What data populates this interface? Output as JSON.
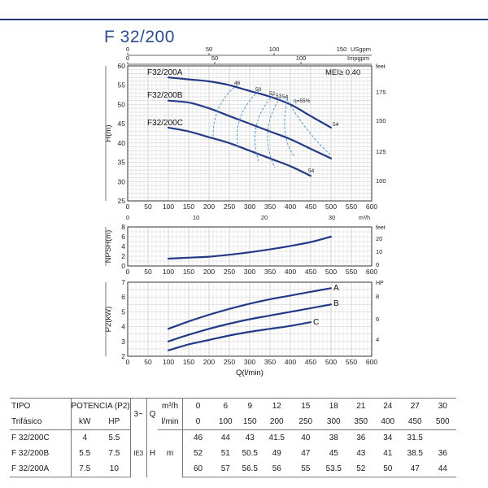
{
  "title": "F 32/200",
  "chart_data": [
    {
      "type": "line",
      "name": "head",
      "ylabel": "H(m)",
      "xlim": [
        0,
        600
      ],
      "ylim": [
        25,
        60
      ],
      "x_ticks": [
        "0",
        "50",
        "100",
        "150",
        "200",
        "250",
        "300",
        "350",
        "400",
        "450",
        "500",
        "550",
        "600"
      ],
      "y_ticks": [
        "25",
        "30",
        "35",
        "40",
        "45",
        "50",
        "55",
        "60"
      ],
      "top_axis_1": {
        "unit": "USgpm",
        "unit_prefix": "150",
        "ticks": [
          "0",
          "50",
          "100"
        ]
      },
      "top_axis_2": {
        "unit": "Impgpm",
        "ticks": [
          "0",
          "50",
          "100"
        ]
      },
      "right_unit": "feet",
      "right_ticks": [
        "100",
        "125",
        "150",
        "175"
      ],
      "annotation": "MEI≥ 0.40",
      "series": [
        {
          "name": "F32/200A",
          "x": [
            100,
            150,
            200,
            250,
            300,
            350,
            400,
            450,
            500
          ],
          "y": [
            57,
            56.5,
            56,
            55,
            53.5,
            52,
            50,
            47,
            44
          ]
        },
        {
          "name": "F32/200B",
          "x": [
            100,
            150,
            200,
            250,
            300,
            350,
            400,
            450,
            500
          ],
          "y": [
            51,
            50.5,
            49,
            47,
            45,
            43,
            41,
            38.5,
            36
          ]
        },
        {
          "name": "F32/200C",
          "x": [
            100,
            150,
            200,
            250,
            300,
            350,
            400,
            450
          ],
          "y": [
            44,
            43,
            41.5,
            40,
            38,
            36,
            34,
            31.5
          ]
        }
      ],
      "efficiency_labels": [
        "46",
        "50",
        "52",
        "53",
        "54",
        "η=55%",
        "54",
        "54"
      ]
    },
    {
      "type": "line",
      "name": "npsh",
      "ylabel": "NPSH(m)",
      "xlim": [
        0,
        600
      ],
      "ylim": [
        0,
        8
      ],
      "x_ticks": [
        "0",
        "50",
        "100",
        "150",
        "200",
        "250",
        "300",
        "350",
        "400",
        "450",
        "500",
        "550",
        "600"
      ],
      "y_ticks": [
        "0",
        "2",
        "4",
        "6",
        "8"
      ],
      "top_axis": {
        "unit": "m³/h",
        "ticks": [
          "0",
          "10",
          "20",
          "30"
        ]
      },
      "right_unit": "feet",
      "right_ticks": [
        "0",
        "10",
        "20"
      ],
      "series": [
        {
          "name": "",
          "x": [
            100,
            150,
            200,
            250,
            300,
            350,
            400,
            450,
            500
          ],
          "y": [
            1.5,
            1.7,
            1.9,
            2.3,
            2.8,
            3.4,
            4.1,
            4.9,
            6.0
          ]
        }
      ]
    },
    {
      "type": "line",
      "name": "power",
      "ylabel": "P2(kW)",
      "xlabel": "Q(l/min)",
      "xlim": [
        0,
        600
      ],
      "ylim": [
        2,
        7
      ],
      "x_ticks": [
        "0",
        "50",
        "100",
        "150",
        "200",
        "250",
        "300",
        "350",
        "400",
        "450",
        "500",
        "550",
        "600"
      ],
      "y_ticks": [
        "2",
        "3",
        "4",
        "5",
        "6",
        "7"
      ],
      "right_unit": "HP",
      "right_ticks": [
        "4",
        "6",
        "8"
      ],
      "series": [
        {
          "name": "A",
          "x": [
            100,
            150,
            200,
            250,
            300,
            350,
            400,
            450,
            500
          ],
          "y": [
            3.85,
            4.35,
            4.8,
            5.2,
            5.55,
            5.85,
            6.1,
            6.35,
            6.6
          ]
        },
        {
          "name": "B",
          "x": [
            100,
            150,
            200,
            250,
            300,
            350,
            400,
            450,
            500
          ],
          "y": [
            3.0,
            3.45,
            3.85,
            4.2,
            4.5,
            4.75,
            5.0,
            5.25,
            5.5
          ]
        },
        {
          "name": "C",
          "x": [
            100,
            150,
            200,
            250,
            300,
            350,
            400,
            450
          ],
          "y": [
            2.4,
            2.8,
            3.1,
            3.4,
            3.65,
            3.85,
            4.05,
            4.3
          ]
        }
      ]
    }
  ],
  "table": {
    "tipo": "TIPO",
    "trifasico": "Trifásico",
    "potencia": "POTENCIA (P2)",
    "kw": "kW",
    "hp": "HP",
    "phase": "3~",
    "q": "Q",
    "h": "H",
    "m": "m",
    "m3h_unit": "m³/h",
    "lmin_unit": "l/min",
    "ie": "IE3",
    "m3h": [
      "0",
      "6",
      "9",
      "12",
      "15",
      "18",
      "21",
      "24",
      "27",
      "30"
    ],
    "lmin": [
      "0",
      "100",
      "150",
      "200",
      "250",
      "300",
      "350",
      "400",
      "450",
      "500"
    ],
    "rows": [
      {
        "model": "F 32/200C",
        "kw": "4",
        "hp": "5.5",
        "h": [
          "46",
          "44",
          "43",
          "41.5",
          "40",
          "38",
          "36",
          "34",
          "31.5",
          ""
        ]
      },
      {
        "model": "F 32/200B",
        "kw": "5.5",
        "hp": "7.5",
        "h": [
          "52",
          "51",
          "50.5",
          "49",
          "47",
          "45",
          "43",
          "41",
          "38.5",
          "36"
        ]
      },
      {
        "model": "F 32/200A",
        "kw": "7.5",
        "hp": "10",
        "h": [
          "60",
          "57",
          "56.5",
          "56",
          "55",
          "53.5",
          "52",
          "50",
          "47",
          "44"
        ]
      }
    ]
  },
  "colors": {
    "curve": "#243a86",
    "grid": "#c8c8c8",
    "eff": "#4a8fd0",
    "title": "#2c4a8e"
  }
}
